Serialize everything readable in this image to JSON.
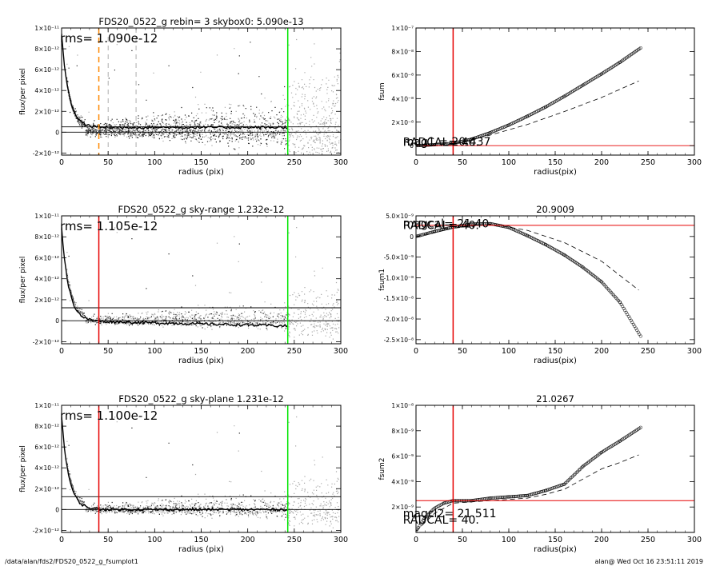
{
  "footer": {
    "left": "/data/alan/fds2/FDS20_0522_g_fsumplot1",
    "right": "alan@  Wed Oct 16 23:51:11 2019"
  },
  "colors": {
    "sky_green": "#00e600",
    "radcal_red": "#e60000",
    "aperture_orange": "#ff8800",
    "scatter_dark": "#222222",
    "scatter_light": "#a8a8a8"
  },
  "chart_data": [
    {
      "id": "p1",
      "type": "scatter",
      "title": "FDS20_0522_g rebin= 3    skybox0:  5.090e-13",
      "xlabel": "radius (pix)",
      "ylabel": "flux/per pixel",
      "xlim": [
        0,
        300
      ],
      "ylim": [
        -2.2e-12,
        1e-11
      ],
      "xticks": [
        0,
        50,
        100,
        150,
        200,
        250,
        300
      ],
      "xtick_labels": [
        "0",
        "50",
        "100",
        "150",
        "200",
        "250",
        "300"
      ],
      "yticks": [
        -2e-12,
        0,
        2e-12,
        4e-12,
        6e-12,
        8e-12,
        1e-11
      ],
      "ytick_labels": [
        "-2×10⁻¹²",
        "0",
        "2×10⁻¹²",
        "4×10⁻¹²",
        "6×10⁻¹²",
        "8×10⁻¹²",
        "1×10⁻¹¹"
      ],
      "rms_label": "rms= 1.090e-12",
      "sky_level": 5.09e-13,
      "hlines": [
        0,
        5.09e-13
      ],
      "vlines": [
        {
          "x": 40,
          "color": "#ff8800",
          "dash": "dashed"
        },
        {
          "x": 50,
          "color": "#999999",
          "dash": "dashed"
        },
        {
          "x": 80,
          "color": "#999999",
          "dash": "dashed"
        },
        {
          "x": 243,
          "color": "#00e600",
          "dash": "solid"
        }
      ],
      "profile_end": 243,
      "scatter_variant": "spread"
    },
    {
      "id": "p2",
      "type": "line",
      "title": "",
      "xlabel": "radius(pix)",
      "ylabel": "fsum",
      "xlim": [
        0,
        300
      ],
      "ylim": [
        -8e-09,
        1e-07
      ],
      "xticks": [
        0,
        50,
        100,
        150,
        200,
        250,
        300
      ],
      "xtick_labels": [
        "0",
        "50",
        "100",
        "150",
        "200",
        "250",
        "300"
      ],
      "yticks": [
        0,
        2e-08,
        4e-08,
        6e-08,
        8e-08,
        1e-07
      ],
      "ytick_labels": [
        "0",
        "2×10⁻⁸",
        "4×10⁻⁸",
        "6×10⁻⁸",
        "8×10⁻⁸",
        "1×10⁻⁷"
      ],
      "series": [
        {
          "style": "circles",
          "x": [
            0,
            20,
            40,
            60,
            80,
            100,
            120,
            140,
            160,
            180,
            200,
            220,
            243
          ],
          "y": [
            0,
            8e-10,
            2e-09,
            5.5e-09,
            1.1e-08,
            1.75e-08,
            2.5e-08,
            3.3e-08,
            4.2e-08,
            5.15e-08,
            6.1e-08,
            7.1e-08,
            8.35e-08
          ]
        },
        {
          "style": "dashed",
          "x": [
            0,
            40,
            80,
            120,
            160,
            200,
            240
          ],
          "y": [
            0,
            1.5e-09,
            9e-09,
            1.8e-08,
            2.9e-08,
            4.1e-08,
            5.5e-08
          ]
        }
      ],
      "hlines": [
        {
          "y": 0,
          "color": "#e60000"
        }
      ],
      "vlines": [
        {
          "x": 40,
          "color": "#e60000"
        }
      ],
      "overlay_labels": [
        {
          "text": "mag1  = 20.437",
          "x": -14,
          "y": 0
        },
        {
          "text": "RADCAL= 40.",
          "x": -14,
          "y": -3e-10
        }
      ]
    },
    {
      "id": "p3",
      "type": "scatter",
      "title": "FDS20_0522_g sky-range  1.232e-12",
      "xlabel": "radius (pix)",
      "ylabel": "flux/per pixel",
      "xlim": [
        0,
        300
      ],
      "ylim": [
        -2.2e-12,
        1e-11
      ],
      "xticks": [
        0,
        50,
        100,
        150,
        200,
        250,
        300
      ],
      "xtick_labels": [
        "0",
        "50",
        "100",
        "150",
        "200",
        "250",
        "300"
      ],
      "yticks": [
        -2e-12,
        0,
        2e-12,
        4e-12,
        6e-12,
        8e-12,
        1e-11
      ],
      "ytick_labels": [
        "-2×10⁻¹²",
        "0",
        "2×10⁻¹²",
        "4×10⁻¹²",
        "6×10⁻¹²",
        "8×10⁻¹²",
        "1×10⁻¹¹"
      ],
      "rms_label": "rms= 1.105e-12",
      "sky_level": 0,
      "hlines": [
        0,
        1.232e-12
      ],
      "vlines": [
        {
          "x": 40,
          "color": "#e60000",
          "dash": "solid"
        },
        {
          "x": 243,
          "color": "#00e600",
          "dash": "solid"
        }
      ],
      "profile_end": 243,
      "profile_drift": -5e-13,
      "scatter_variant": "sparse"
    },
    {
      "id": "p4",
      "type": "line",
      "title": "20.9009",
      "xlabel": "radius(pix)",
      "ylabel": "fsum1",
      "xlim": [
        0,
        300
      ],
      "ylim": [
        -2.6e-08,
        5e-09
      ],
      "xticks": [
        0,
        50,
        100,
        150,
        200,
        250,
        300
      ],
      "xtick_labels": [
        "0",
        "50",
        "100",
        "150",
        "200",
        "250",
        "300"
      ],
      "yticks": [
        5e-09,
        0,
        -5e-09,
        -1e-08,
        -1.5e-08,
        -2e-08,
        -2.5e-08
      ],
      "ytick_labels": [
        "5.0×10⁻⁹",
        "0",
        "-5.0×10⁻⁹",
        "-1.0×10⁻⁸",
        "-1.5×10⁻⁸",
        "-2.0×10⁻⁸",
        "-2.5×10⁻⁸"
      ],
      "series": [
        {
          "style": "circles",
          "x": [
            0,
            20,
            40,
            60,
            80,
            100,
            120,
            140,
            160,
            180,
            200,
            220,
            243
          ],
          "y": [
            0,
            1.2e-09,
            2.3e-09,
            3e-09,
            3.1e-09,
            2.2e-09,
            2e-10,
            -2e-09,
            -4.5e-09,
            -7.5e-09,
            -1.1e-08,
            -1.6e-08,
            -2.45e-08
          ]
        },
        {
          "style": "dashed",
          "x": [
            0,
            40,
            80,
            120,
            160,
            200,
            240
          ],
          "y": [
            0,
            2e-09,
            3e-09,
            1.5e-09,
            -1.5e-09,
            -6e-09,
            -1.3e-08
          ]
        }
      ],
      "hlines": [
        {
          "y": 2.7e-09,
          "color": "#e60000"
        }
      ],
      "vlines": [
        {
          "x": 40,
          "color": "#e60000"
        }
      ],
      "overlay_labels": [
        {
          "text": "magcal= 21.40",
          "x": -14,
          "y": 2.2e-09
        },
        {
          "text": "RADCAL= 40.",
          "x": -14,
          "y": 1.8e-09
        }
      ]
    },
    {
      "id": "p5",
      "type": "scatter",
      "title": "FDS20_0522_g sky-plane  1.231e-12",
      "xlabel": "radius (pix)",
      "ylabel": "flux/per pixel",
      "xlim": [
        0,
        300
      ],
      "ylim": [
        -2.2e-12,
        1e-11
      ],
      "xticks": [
        0,
        50,
        100,
        150,
        200,
        250,
        300
      ],
      "xtick_labels": [
        "0",
        "50",
        "100",
        "150",
        "200",
        "250",
        "300"
      ],
      "yticks": [
        -2e-12,
        0,
        2e-12,
        4e-12,
        6e-12,
        8e-12,
        1e-11
      ],
      "ytick_labels": [
        "-2×10⁻¹²",
        "0",
        "2×10⁻¹²",
        "4×10⁻¹²",
        "6×10⁻¹²",
        "8×10⁻¹²",
        "1×10⁻¹¹"
      ],
      "rms_label": "rms= 1.100e-12",
      "sky_level": 0,
      "hlines": [
        0,
        1.231e-12
      ],
      "vlines": [
        {
          "x": 40,
          "color": "#e60000",
          "dash": "solid"
        },
        {
          "x": 243,
          "color": "#00e600",
          "dash": "solid"
        }
      ],
      "profile_end": 243,
      "profile_drift": 0,
      "scatter_variant": "sparse"
    },
    {
      "id": "p6",
      "type": "line",
      "title": "21.0267",
      "xlabel": "radius(pix)",
      "ylabel": "fsum2",
      "xlim": [
        0,
        300
      ],
      "ylim": [
        0,
        1e-08
      ],
      "xticks": [
        0,
        50,
        100,
        150,
        200,
        250,
        300
      ],
      "xtick_labels": [
        "0",
        "50",
        "100",
        "150",
        "200",
        "250",
        "300"
      ],
      "yticks": [
        2e-09,
        4e-09,
        6e-09,
        8e-09,
        1e-08
      ],
      "ytick_labels": [
        "2×10⁻⁹",
        "4×10⁻⁹",
        "6×10⁻⁹",
        "8×10⁻⁹",
        "1×10⁻⁸"
      ],
      "series": [
        {
          "style": "circles",
          "x": [
            0,
            10,
            20,
            30,
            40,
            60,
            80,
            100,
            120,
            140,
            160,
            180,
            200,
            220,
            243
          ],
          "y": [
            1e-10,
            1.2e-09,
            1.9e-09,
            2.3e-09,
            2.5e-09,
            2.5e-09,
            2.7e-09,
            2.8e-09,
            2.9e-09,
            3.3e-09,
            3.8e-09,
            5.2e-09,
            6.3e-09,
            7.2e-09,
            8.3e-09
          ]
        },
        {
          "style": "dashed",
          "x": [
            0,
            20,
            40,
            60,
            80,
            100,
            120,
            140,
            160,
            180,
            200,
            220,
            240
          ],
          "y": [
            1e-10,
            1.5e-09,
            2.3e-09,
            2.4e-09,
            2.5e-09,
            2.6e-09,
            2.7e-09,
            3e-09,
            3.4e-09,
            4.2e-09,
            5e-09,
            5.5e-09,
            6.1e-09
          ]
        }
      ],
      "hlines": [
        {
          "y": 2.5e-09,
          "color": "#e60000"
        }
      ],
      "vlines": [
        {
          "x": 40,
          "color": "#e60000"
        }
      ],
      "overlay_labels": [
        {
          "text": "magcl2= 21.511",
          "x": -14,
          "y": 1.2e-09
        },
        {
          "text": "RADCAL= 40.",
          "x": -14,
          "y": 7e-10
        }
      ]
    }
  ]
}
